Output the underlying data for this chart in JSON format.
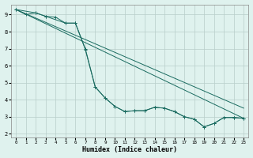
{
  "background_color": "#dff2ee",
  "grid_color": "#b8ceca",
  "line_color": "#1a6b60",
  "xlabel": "Humidex (Indice chaleur)",
  "xlim": [
    -0.5,
    23.5
  ],
  "ylim": [
    1.8,
    9.6
  ],
  "xticks": [
    0,
    1,
    2,
    3,
    4,
    5,
    6,
    7,
    8,
    9,
    10,
    11,
    12,
    13,
    14,
    15,
    16,
    17,
    18,
    19,
    20,
    21,
    22,
    23
  ],
  "yticks": [
    2,
    3,
    4,
    5,
    6,
    7,
    8,
    9
  ],
  "line1_x": [
    0,
    1,
    2,
    3,
    5,
    6,
    7,
    8,
    9,
    10,
    11,
    12,
    13,
    14,
    15,
    16,
    17,
    18,
    19,
    20,
    21,
    22,
    23
  ],
  "line1_y": [
    9.3,
    9.0,
    9.1,
    8.9,
    8.5,
    8.5,
    6.95,
    4.75,
    4.1,
    3.6,
    3.3,
    3.35,
    3.35,
    3.55,
    3.5,
    3.3,
    3.0,
    2.85,
    2.4,
    2.6,
    2.95,
    2.95,
    2.9
  ],
  "line2_x": [
    0,
    2,
    3,
    4,
    5,
    6,
    7,
    8,
    9,
    10,
    11,
    12,
    13,
    14,
    15,
    16,
    17,
    18,
    19,
    20,
    21,
    22,
    23
  ],
  "line2_y": [
    9.3,
    9.1,
    8.9,
    8.85,
    8.5,
    8.5,
    7.0,
    4.75,
    4.1,
    3.6,
    3.3,
    3.35,
    3.35,
    3.55,
    3.5,
    3.3,
    3.0,
    2.85,
    2.4,
    2.6,
    2.95,
    2.95,
    2.9
  ],
  "line3_x": [
    0,
    23
  ],
  "line3_y": [
    9.3,
    2.9
  ],
  "line4_x": [
    0,
    23
  ],
  "line4_y": [
    9.3,
    3.5
  ]
}
